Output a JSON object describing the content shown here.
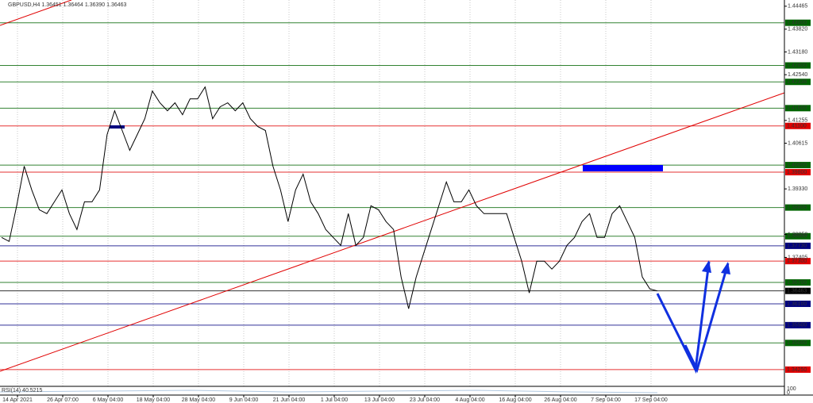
{
  "chart_data": {
    "type": "line",
    "title": "GBPUSD,H4  1.36451 1.36464 1.36390 1.36463",
    "indicator_label": "RSI(14) 40.5215",
    "indicator_ticks": [
      "100",
      "0"
    ],
    "ylim": [
      1.3378,
      1.4464
    ],
    "yticks": [
      {
        "value": 1.44465,
        "label": "1.44465"
      },
      {
        "value": 1.4382,
        "label": "1.43820"
      },
      {
        "value": 1.4318,
        "label": "1.43180"
      },
      {
        "value": 1.4254,
        "label": "1.42540"
      },
      {
        "value": 1.41255,
        "label": "1.41255"
      },
      {
        "value": 1.40615,
        "label": "1.40615"
      },
      {
        "value": 1.3933,
        "label": "1.39330"
      },
      {
        "value": 1.3805,
        "label": "1.38050"
      },
      {
        "value": 1.37405,
        "label": "1.37405"
      }
    ],
    "x_labels": [
      "14 Apr 2021",
      "26 Apr 07:00",
      "6 May 04:00",
      "18 May 04:00",
      "28 May 04:00",
      "9 Jun 04:00",
      "21 Jun 04:00",
      "1 Jul 04:00",
      "13 Jul 04:00",
      "23 Jul 04:00",
      "4 Aug 04:00",
      "16 Aug 04:00",
      "26 Aug 04:00",
      "7 Sep 04:00",
      "17 Sep 04:00"
    ],
    "grid": true,
    "series": [
      {
        "name": "GBPUSD",
        "color": "#000000",
        "values": [
          1.37966,
          1.37855,
          1.38856,
          1.39969,
          1.39301,
          1.38745,
          1.38634,
          1.38967,
          1.39301,
          1.38634,
          1.38188,
          1.38967,
          1.38967,
          1.39301,
          1.40859,
          1.41527,
          1.40971,
          1.40414,
          1.40859,
          1.41304,
          1.42083,
          1.4175,
          1.41527,
          1.4175,
          1.41416,
          1.41861,
          1.41861,
          1.42195,
          1.41304,
          1.41638,
          1.4175,
          1.41527,
          1.4175,
          1.41304,
          1.41082,
          1.40971,
          1.39969,
          1.39301,
          1.38411,
          1.39301,
          1.39746,
          1.38967,
          1.38634,
          1.38188,
          1.37966,
          1.37743,
          1.38634,
          1.37743,
          1.37966,
          1.38856,
          1.38745,
          1.38411,
          1.38188,
          1.36853,
          1.35963,
          1.36853,
          1.37521,
          1.38188,
          1.38856,
          1.39524,
          1.38967,
          1.38967,
          1.39301,
          1.38856,
          1.38634,
          1.38634,
          1.38634,
          1.38634,
          1.37966,
          1.37298,
          1.36408,
          1.37298,
          1.37298,
          1.37076,
          1.37298,
          1.37743,
          1.37966,
          1.38411,
          1.38634,
          1.37966,
          1.37966,
          1.38634,
          1.38856,
          1.38411,
          1.37966,
          1.36853,
          1.36519,
          1.36463
        ]
      }
    ],
    "levels": [
      {
        "value": 1.44,
        "label": "1.44000",
        "color": "#006400"
      },
      {
        "value": 1.428,
        "label": "1.42800",
        "color": "#006400"
      },
      {
        "value": 1.42338,
        "label": "1.42338",
        "color": "#006400"
      },
      {
        "value": 1.416,
        "label": "1.41600",
        "color": "#006400"
      },
      {
        "value": 1.411,
        "label": "1.41100",
        "color": "#e00000"
      },
      {
        "value": 1.4,
        "label": "1.40000",
        "color": "#006400"
      },
      {
        "value": 1.398,
        "label": "1.39800",
        "color": "#e00000"
      },
      {
        "value": 1.38806,
        "label": "1.38806",
        "color": "#006400"
      },
      {
        "value": 1.38,
        "label": "1.38000",
        "color": "#006400"
      },
      {
        "value": 1.3773,
        "label": "1.37730",
        "color": "#000080"
      },
      {
        "value": 1.373,
        "label": "1.37300",
        "color": "#e00000"
      },
      {
        "value": 1.367,
        "label": "1.36700",
        "color": "#006400"
      },
      {
        "value": 1.36463,
        "label": "1.36463",
        "color": "#000000"
      },
      {
        "value": 1.361,
        "label": "1.36100",
        "color": "#000080"
      },
      {
        "value": 1.355,
        "label": "1.35500",
        "color": "#000080"
      },
      {
        "value": 1.35,
        "label": "1.35000",
        "color": "#006400"
      },
      {
        "value": 1.3425,
        "label": "1.34250",
        "color": "#e00000"
      }
    ]
  }
}
